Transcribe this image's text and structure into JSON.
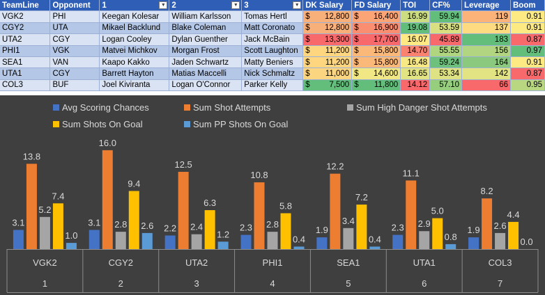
{
  "table": {
    "headers": [
      "TeamLine",
      "Opponent",
      "1",
      "2",
      "3",
      "DK Salary",
      "FD Salary",
      "TOI",
      "CF%",
      "Leverage",
      "Boom"
    ],
    "dropdown_icon": "chevron-down-icon",
    "rows": [
      {
        "teamline": "VGK2",
        "opponent": "PHI",
        "p1": "Keegan Kolesar",
        "p2": "William Karlsson",
        "p3": "Tomas Hertl",
        "dk": "12,800",
        "fd": "16,400",
        "toi": "16.99",
        "cf": "59.94",
        "lev": "119",
        "boom": "0.91"
      },
      {
        "teamline": "CGY2",
        "opponent": "UTA",
        "p1": "Mikael Backlund",
        "p2": "Blake Coleman",
        "p3": "Matt Coronato",
        "dk": "12,800",
        "fd": "16,900",
        "toi": "19.08",
        "cf": "53.59",
        "lev": "137",
        "boom": "0.91"
      },
      {
        "teamline": "UTA2",
        "opponent": "CGY",
        "p1": "Logan Cooley",
        "p2": "Dylan Guenther",
        "p3": "Jack McBain",
        "dk": "13,300",
        "fd": "17,700",
        "toi": "16.07",
        "cf": "45.89",
        "lev": "183",
        "boom": "0.87"
      },
      {
        "teamline": "PHI1",
        "opponent": "VGK",
        "p1": "Matvei Michkov",
        "p2": "Morgan Frost",
        "p3": "Scott Laughton",
        "dk": "11,200",
        "fd": "15,800",
        "toi": "14.70",
        "cf": "55.55",
        "lev": "156",
        "boom": "0.97"
      },
      {
        "teamline": "SEA1",
        "opponent": "VAN",
        "p1": "Kaapo Kakko",
        "p2": "Jaden Schwartz",
        "p3": "Matty Beniers",
        "dk": "11,200",
        "fd": "15,800",
        "toi": "16.48",
        "cf": "59.24",
        "lev": "164",
        "boom": "0.91"
      },
      {
        "teamline": "UTA1",
        "opponent": "CGY",
        "p1": "Barrett Hayton",
        "p2": "Matias Maccelli",
        "p3": "Nick Schmaltz",
        "dk": "11,000",
        "fd": "14,600",
        "toi": "16.65",
        "cf": "53.34",
        "lev": "142",
        "boom": "0.87"
      },
      {
        "teamline": "COL3",
        "opponent": "BUF",
        "p1": "Joel Kiviranta",
        "p2": "Logan O'Connor",
        "p3": "Parker Kelly",
        "dk": "7,500",
        "fd": "11,800",
        "toi": "14.12",
        "cf": "57.10",
        "lev": "66",
        "boom": "0.95"
      }
    ],
    "cell_colors": {
      "dk": [
        "#f8b07b",
        "#f8b07b",
        "#f8696b",
        "#fed680",
        "#fed680",
        "#fcd580",
        "#63be7b"
      ],
      "fd": [
        "#fba476",
        "#f98e71",
        "#f8696b",
        "#fbb979",
        "#fbb979",
        "#f1e784",
        "#63be7b"
      ],
      "toi": [
        "#cbdc81",
        "#63be7b",
        "#ffe984",
        "#f98370",
        "#f9e984",
        "#e2e383",
        "#f8696b"
      ],
      "cf": [
        "#63be7b",
        "#d9e081",
        "#f8696b",
        "#afd57f",
        "#6dc17c",
        "#dfe283",
        "#96ce7e"
      ],
      "lev": [
        "#fbb379",
        "#fedb81",
        "#63be7b",
        "#b1d580",
        "#8bca7e",
        "#e2e383",
        "#f8696b"
      ],
      "boom": [
        "#feea83",
        "#feea83",
        "#f8696b",
        "#63be7b",
        "#feea83",
        "#f8696b",
        "#b8d780"
      ]
    }
  },
  "chart_data": {
    "type": "bar",
    "categories": [
      "VGK2",
      "CGY2",
      "UTA2",
      "PHI1",
      "SEA1",
      "UTA1",
      "COL3"
    ],
    "category_numbers": [
      "1",
      "2",
      "3",
      "4",
      "5",
      "6",
      "7"
    ],
    "series": [
      {
        "name": "Avg Scoring Chances",
        "color": "#4472c4",
        "values": [
          3.1,
          3.1,
          2.2,
          2.3,
          1.9,
          2.3,
          1.9
        ]
      },
      {
        "name": "Sum Shot Attempts",
        "color": "#ed7d31",
        "values": [
          13.8,
          16.0,
          12.5,
          10.8,
          12.2,
          11.1,
          8.2
        ]
      },
      {
        "name": "Sum High Danger Shot Attempts",
        "color": "#a5a5a5",
        "values": [
          5.2,
          2.8,
          2.4,
          2.8,
          3.4,
          2.9,
          2.6
        ]
      },
      {
        "name": "Sum Shots On Goal",
        "color": "#ffc000",
        "values": [
          7.4,
          9.4,
          6.3,
          5.8,
          7.2,
          5.0,
          4.4
        ]
      },
      {
        "name": "Sum PP Shots On Goal",
        "color": "#5b9bd5",
        "values": [
          1.0,
          2.6,
          1.2,
          0.4,
          0.4,
          0.8,
          0.0
        ]
      }
    ],
    "ylim": [
      0,
      17
    ],
    "grid": false,
    "legend_position": "top",
    "background": "#3f3f3f"
  }
}
